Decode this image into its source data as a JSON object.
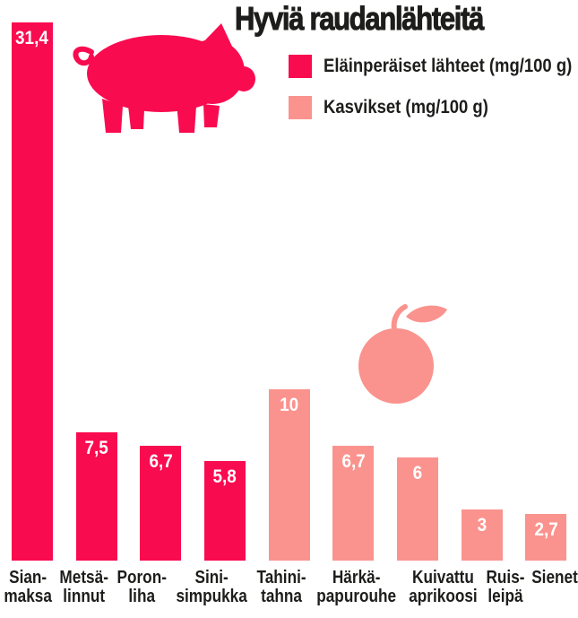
{
  "header": {
    "title": "Hyviä raudanlähteitä"
  },
  "legend": {
    "items": [
      {
        "key": "animal",
        "label": "Eläinperäiset lähteet (mg/100 g)",
        "color": "#F90B50"
      },
      {
        "key": "plant",
        "label": "Kasvikset (mg/100 g)",
        "color": "#FA938E"
      }
    ]
  },
  "icons": {
    "pig": "pig-icon",
    "apricot": "apricot-icon"
  },
  "colors": {
    "animal": "#F90B50",
    "plant": "#FA938E",
    "text": "#1D1D1B",
    "value_text": "#FFFFFF",
    "background": "#FFFFFF"
  },
  "chart_data": {
    "type": "bar",
    "title": "Hyviä raudanlähteitä",
    "xlabel": "",
    "ylabel": "mg/100 g",
    "ylim": [
      0,
      31.4
    ],
    "grid": false,
    "legend_position": "top-right",
    "categories": [
      "Sianmaksa",
      "Metsälinnut",
      "Poronliha",
      "Sinisimpukka",
      "Tahinitahna",
      "Härkäpapurouhe",
      "Kuivattu aprikoosi",
      "Ruisleipä",
      "Sienet"
    ],
    "category_lines": [
      [
        "Sian-",
        "maksa"
      ],
      [
        "Metsä-",
        "linnut"
      ],
      [
        "Poron-",
        "liha"
      ],
      [
        "Sini-",
        "simpukka"
      ],
      [
        "Tahini-",
        "tahna"
      ],
      [
        "Härkä-",
        "papurouhe"
      ],
      [
        "Kuivattu",
        "aprikoosi"
      ],
      [
        "Ruis-",
        "leipä"
      ],
      [
        "Sienet"
      ]
    ],
    "values": [
      31.4,
      7.5,
      6.7,
      5.8,
      10,
      6.7,
      6,
      3,
      2.7
    ],
    "value_labels": [
      "31,4",
      "7,5",
      "6,7",
      "5,8",
      "10",
      "6,7",
      "6",
      "3",
      "2,7"
    ],
    "bar_series": [
      "animal",
      "animal",
      "animal",
      "animal",
      "plant",
      "plant",
      "plant",
      "plant",
      "plant"
    ],
    "series": [
      {
        "name": "Eläinperäiset lähteet (mg/100 g)",
        "color": "#F90B50",
        "categories": [
          "Sianmaksa",
          "Metsälinnut",
          "Poronliha",
          "Sinisimpukka"
        ],
        "values": [
          31.4,
          7.5,
          6.7,
          5.8
        ]
      },
      {
        "name": "Kasvikset (mg/100 g)",
        "color": "#FA938E",
        "categories": [
          "Tahinitahna",
          "Härkäpapurouhe",
          "Kuivattu aprikoosi",
          "Ruisleipä",
          "Sienet"
        ],
        "values": [
          10,
          6.7,
          6,
          3,
          2.7
        ]
      }
    ]
  }
}
